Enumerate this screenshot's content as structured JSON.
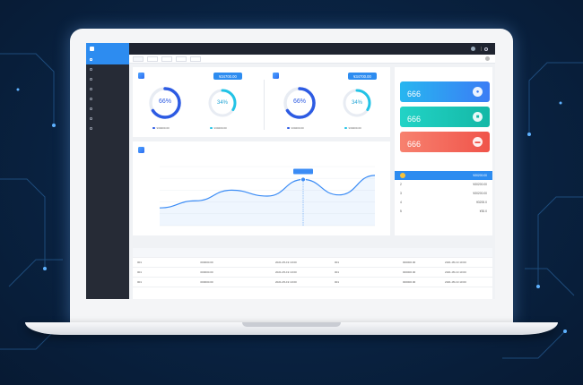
{
  "header": {
    "brand": "",
    "breadcrumb": "",
    "user": ""
  },
  "sidebar": {
    "items": [
      {
        "label": ""
      },
      {
        "label": ""
      },
      {
        "label": ""
      },
      {
        "label": ""
      },
      {
        "label": ""
      },
      {
        "label": ""
      },
      {
        "label": ""
      },
      {
        "label": ""
      }
    ]
  },
  "tabs": [
    {
      "label": ""
    },
    {
      "label": ""
    },
    {
      "label": ""
    },
    {
      "label": ""
    },
    {
      "label": ""
    }
  ],
  "profit": {
    "title": "",
    "amount": "¥34700.00",
    "ring_left": {
      "percent": "66%",
      "label": "",
      "fraction": 0.66,
      "color": "#2d5be3"
    },
    "ring_right": {
      "percent": "34%",
      "label": "",
      "fraction": 0.34,
      "color": "#22c3e6"
    },
    "legend_left": "¥30200.00",
    "legend_right": "¥30200.00"
  },
  "expense": {
    "title": "",
    "amount": "¥34700.00",
    "ring_left": {
      "percent": "66%",
      "label": "",
      "fraction": 0.66,
      "color": "#2d5be3"
    },
    "ring_right": {
      "percent": "34%",
      "label": "",
      "fraction": 0.34,
      "color": "#22c3e6"
    },
    "legend_left": "¥30200.00",
    "legend_right": "¥30200.00"
  },
  "stats": {
    "title": "",
    "cards": [
      {
        "label": "",
        "value": "666",
        "icon": "user-icon",
        "color_from": "#27b6f0",
        "color_to": "#3b7df5"
      },
      {
        "label": "",
        "value": "666",
        "icon": "wallet-icon",
        "color_from": "#22d3c6",
        "color_to": "#14b8a6"
      },
      {
        "label": "",
        "value": "666",
        "icon": "card-icon",
        "color_from": "#f7816f",
        "color_to": "#f0544a"
      }
    ]
  },
  "trend": {
    "title": "",
    "filter": "",
    "tooltip": ""
  },
  "chart_data": {
    "type": "line",
    "x": [
      "",
      "",
      "",
      "",
      "",
      "",
      ""
    ],
    "series": [
      {
        "values": [
          30,
          42,
          60,
          50,
          78,
          52,
          85
        ]
      }
    ],
    "yticks": [
      "",
      "",
      "",
      "",
      "",
      ""
    ],
    "highlight_index": 4
  },
  "ranking": {
    "title": "",
    "rows": [
      {
        "rank": "",
        "name": "",
        "amount": "¥30200.00"
      },
      {
        "rank": "2",
        "name": "",
        "amount": "¥30200.00"
      },
      {
        "rank": "3",
        "name": "",
        "amount": "¥30200.00"
      },
      {
        "rank": "4",
        "name": "",
        "amount": "¥3200.0"
      },
      {
        "rank": "5",
        "name": "",
        "amount": "¥30.0"
      }
    ]
  },
  "table_left": {
    "title": "",
    "headers": [
      "",
      "",
      "",
      "",
      ""
    ],
    "rows": [
      [
        "001",
        "",
        "000000.00",
        "",
        "2021-05-19 10:00"
      ],
      [
        "001",
        "",
        "000000.00",
        "",
        "2021-05-19 10:00"
      ],
      [
        "001",
        "",
        "000000.00",
        "",
        "2021-05-19 10:00"
      ]
    ]
  },
  "table_right": {
    "title": "",
    "headers": [
      "",
      "",
      "",
      ""
    ],
    "rows": [
      [
        "001",
        "",
        "000000.00",
        "2021-05-19 10:00"
      ],
      [
        "001",
        "",
        "000000.00",
        "2021-05-19 10:00"
      ],
      [
        "001",
        "",
        "000000.00",
        "2021-05-19 10:00"
      ]
    ]
  }
}
